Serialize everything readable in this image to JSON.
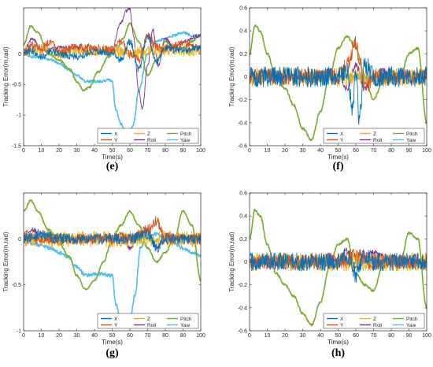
{
  "colors": {
    "X": "#0072BD",
    "Y": "#D95319",
    "Z": "#EDB120",
    "Roll": "#7E2F8E",
    "Pitch": "#77AC30",
    "Yaw": "#4DBEEE",
    "axis": "#262626",
    "background": "#ffffff"
  },
  "chart_data": [
    {
      "type": "line",
      "panel_label": "(e)",
      "xlabel": "Time(s)",
      "ylabel": "Tracking Error(m,rad)",
      "xlim": [
        0,
        100
      ],
      "ylim": [
        -1.5,
        0.75
      ],
      "xticks": [
        "0",
        "10",
        "20",
        "30",
        "40",
        "50",
        "60",
        "70",
        "80",
        "90",
        "100"
      ],
      "yticks": [
        "0",
        "-0.5",
        "-1",
        "-1.5"
      ],
      "ytick_values": [
        0,
        -0.5,
        -1,
        -1.5
      ],
      "grid": false,
      "legend": {
        "placement": "bottom-right",
        "columns": 3,
        "entries": [
          "X",
          "Z",
          "Pitch",
          "Y",
          "Roll",
          "Yaw"
        ]
      },
      "series": [
        {
          "name": "X",
          "x": [
            0,
            5,
            10,
            15,
            20,
            30,
            40,
            50,
            55,
            60,
            65,
            70,
            75,
            80,
            90,
            100
          ],
          "values": [
            0.0,
            0.05,
            -0.05,
            0.05,
            0.0,
            -0.05,
            0.05,
            0.0,
            -0.1,
            0.2,
            -0.25,
            0.3,
            -0.15,
            0.1,
            0.05,
            0.1
          ],
          "noise": 0.06
        },
        {
          "name": "Y",
          "x": [
            0,
            5,
            10,
            15,
            20,
            30,
            40,
            50,
            55,
            60,
            65,
            70,
            75,
            80,
            90,
            100
          ],
          "values": [
            0.0,
            0.15,
            0.1,
            0.2,
            0.05,
            0.1,
            0.1,
            0.05,
            0.2,
            0.0,
            -0.1,
            0.3,
            0.1,
            0.1,
            0.15,
            0.1
          ],
          "noise": 0.07
        },
        {
          "name": "Z",
          "x": [
            0,
            10,
            20,
            30,
            40,
            50,
            60,
            70,
            80,
            90,
            100
          ],
          "values": [
            0.05,
            0.05,
            0.0,
            0.05,
            0.05,
            0.05,
            0.0,
            0.05,
            0.05,
            0.05,
            0.05
          ],
          "noise": 0.09
        },
        {
          "name": "Roll",
          "x": [
            0,
            5,
            10,
            20,
            30,
            40,
            50,
            55,
            58,
            60,
            62,
            65,
            67,
            70,
            73,
            76,
            80,
            85,
            90,
            100
          ],
          "values": [
            0.05,
            0.25,
            0.05,
            0.1,
            0.1,
            0.0,
            0.1,
            0.5,
            0.7,
            0.75,
            0.3,
            -0.6,
            -0.9,
            -0.2,
            0.4,
            -0.2,
            0.25,
            0.1,
            0.2,
            0.3
          ],
          "noise": 0.03
        },
        {
          "name": "Pitch",
          "x": [
            0,
            4,
            8,
            14,
            20,
            26,
            30,
            34,
            37,
            42,
            48,
            52,
            56,
            60,
            65,
            70,
            75,
            80,
            85,
            90,
            95,
            100
          ],
          "values": [
            0.15,
            0.45,
            0.35,
            0.0,
            -0.1,
            -0.25,
            -0.45,
            -0.6,
            -0.55,
            -0.3,
            -0.05,
            0.05,
            0.25,
            0.5,
            0.2,
            -0.35,
            -0.1,
            0.2,
            0.1,
            0.1,
            0.2,
            0.3
          ],
          "noise": 0.015
        },
        {
          "name": "Yaw",
          "x": [
            0,
            5,
            10,
            15,
            20,
            25,
            30,
            35,
            40,
            45,
            48,
            50,
            52,
            55,
            57,
            60,
            62,
            65,
            70,
            75,
            80,
            85,
            90,
            95,
            100
          ],
          "values": [
            0.0,
            -0.05,
            -0.05,
            -0.1,
            -0.15,
            -0.25,
            -0.35,
            -0.45,
            -0.45,
            -0.45,
            -0.42,
            -0.45,
            -0.9,
            -1.15,
            -1.25,
            -1.3,
            -1.15,
            -0.6,
            0.0,
            0.2,
            0.25,
            0.3,
            0.35,
            0.3,
            0.3
          ],
          "noise": 0.02
        }
      ]
    },
    {
      "type": "line",
      "panel_label": "(f)",
      "xlabel": "Time(s)",
      "ylabel": "Tracking Error(m,rad)",
      "xlim": [
        0,
        100
      ],
      "ylim": [
        -0.6,
        0.6
      ],
      "xticks": [
        "0",
        "10",
        "20",
        "30",
        "40",
        "50",
        "60",
        "70",
        "80",
        "90",
        "100"
      ],
      "yticks": [
        "0.6",
        "0.4",
        "0.2",
        "0",
        "-0.2",
        "-0.4",
        "-0.6"
      ],
      "ytick_values": [
        0.6,
        0.4,
        0.2,
        0,
        -0.2,
        -0.4,
        -0.6
      ],
      "grid": false,
      "legend": {
        "placement": "bottom-right",
        "columns": 3,
        "entries": [
          "X",
          "Z",
          "Pitch",
          "Y",
          "Roll",
          "Yaw"
        ]
      },
      "series": [
        {
          "name": "X",
          "x": [
            0,
            10,
            20,
            30,
            40,
            50,
            55,
            58,
            60,
            62,
            65,
            70,
            80,
            90,
            100
          ],
          "values": [
            0.0,
            0.0,
            0.0,
            0.0,
            0.0,
            0.0,
            0.05,
            -0.3,
            0.0,
            -0.35,
            0.1,
            0.0,
            0.0,
            0.0,
            0.0
          ],
          "noise": 0.09
        },
        {
          "name": "Y",
          "x": [
            0,
            10,
            20,
            30,
            40,
            50,
            55,
            60,
            62,
            65,
            70,
            80,
            90,
            100
          ],
          "values": [
            0.0,
            0.0,
            0.0,
            0.0,
            0.0,
            0.0,
            0.1,
            0.3,
            0.15,
            -0.1,
            0.0,
            0.0,
            0.0,
            0.0
          ],
          "noise": 0.07
        },
        {
          "name": "Z",
          "x": [
            0,
            10,
            20,
            30,
            40,
            50,
            60,
            70,
            80,
            90,
            100
          ],
          "values": [
            0.0,
            0.0,
            0.0,
            0.0,
            0.0,
            0.0,
            0.0,
            0.0,
            0.0,
            0.0,
            0.0
          ],
          "noise": 0.08
        },
        {
          "name": "Roll",
          "x": [
            0,
            10,
            20,
            30,
            40,
            45,
            50,
            55,
            60,
            65,
            70,
            75,
            80,
            90,
            100
          ],
          "values": [
            0.0,
            0.02,
            0.0,
            -0.02,
            0.0,
            0.05,
            0.0,
            -0.1,
            0.1,
            -0.1,
            0.0,
            0.05,
            0.0,
            0.0,
            0.0
          ],
          "noise": 0.03
        },
        {
          "name": "Pitch",
          "x": [
            0,
            3,
            6,
            10,
            15,
            20,
            25,
            30,
            35,
            40,
            45,
            50,
            55,
            60,
            65,
            70,
            75,
            80,
            85,
            90,
            95,
            100
          ],
          "values": [
            0.2,
            0.45,
            0.4,
            0.2,
            0.0,
            -0.1,
            -0.25,
            -0.45,
            -0.55,
            -0.3,
            0.0,
            0.25,
            0.35,
            0.25,
            0.0,
            -0.2,
            -0.05,
            0.05,
            0.0,
            0.2,
            0.25,
            -0.4
          ],
          "noise": 0.01
        },
        {
          "name": "Yaw",
          "x": [
            0,
            10,
            20,
            30,
            40,
            50,
            60,
            70,
            80,
            90,
            100
          ],
          "values": [
            0.0,
            0.0,
            0.0,
            0.0,
            0.0,
            0.0,
            0.0,
            0.0,
            0.0,
            -0.02,
            0.0
          ],
          "noise": 0.02
        }
      ]
    },
    {
      "type": "line",
      "panel_label": "(g)",
      "xlabel": "Time(s)",
      "ylabel": "Tracking Error(m,rad)",
      "xlim": [
        0,
        100
      ],
      "ylim": [
        -1,
        0.5
      ],
      "xticks": [
        "0",
        "10",
        "20",
        "30",
        "40",
        "50",
        "60",
        "70",
        "80",
        "90",
        "100"
      ],
      "yticks": [
        "0",
        "-0.5",
        "-1"
      ],
      "ytick_values": [
        0,
        -0.5,
        -1
      ],
      "grid": false,
      "legend": {
        "placement": "bottom-right",
        "columns": 3,
        "entries": [
          "X",
          "Z",
          "Pitch",
          "Y",
          "Roll",
          "Yaw"
        ]
      },
      "series": [
        {
          "name": "X",
          "x": [
            0,
            10,
            20,
            30,
            40,
            50,
            60,
            70,
            75,
            80,
            90,
            100
          ],
          "values": [
            0.0,
            0.05,
            0.0,
            0.0,
            0.0,
            0.0,
            0.0,
            0.05,
            -0.1,
            0.0,
            0.0,
            0.0
          ],
          "noise": 0.06
        },
        {
          "name": "Y",
          "x": [
            0,
            10,
            20,
            30,
            40,
            50,
            60,
            70,
            75,
            80,
            90,
            100
          ],
          "values": [
            0.0,
            0.0,
            0.0,
            0.0,
            0.0,
            0.0,
            0.0,
            0.1,
            0.2,
            0.0,
            0.0,
            0.0
          ],
          "noise": 0.06
        },
        {
          "name": "Z",
          "x": [
            0,
            10,
            20,
            30,
            40,
            50,
            60,
            70,
            80,
            90,
            100
          ],
          "values": [
            0.0,
            0.0,
            0.0,
            0.0,
            0.0,
            0.0,
            0.0,
            0.0,
            0.0,
            0.0,
            0.0
          ],
          "noise": 0.09
        },
        {
          "name": "Roll",
          "x": [
            0,
            5,
            10,
            20,
            30,
            40,
            50,
            55,
            60,
            65,
            70,
            75,
            80,
            90,
            100
          ],
          "values": [
            0.05,
            0.1,
            0.05,
            0.0,
            0.0,
            0.0,
            0.0,
            0.05,
            -0.1,
            0.05,
            0.1,
            -0.1,
            0.05,
            0.0,
            0.0
          ],
          "noise": 0.03
        },
        {
          "name": "Pitch",
          "x": [
            0,
            4,
            8,
            14,
            20,
            26,
            30,
            35,
            40,
            45,
            50,
            55,
            60,
            65,
            70,
            75,
            80,
            85,
            90,
            95,
            100
          ],
          "values": [
            0.3,
            0.42,
            0.3,
            0.1,
            -0.05,
            -0.2,
            -0.4,
            -0.55,
            -0.45,
            -0.25,
            0.0,
            0.15,
            0.3,
            0.15,
            -0.1,
            -0.25,
            -0.15,
            0.0,
            0.3,
            0.15,
            -0.45
          ],
          "noise": 0.01
        },
        {
          "name": "Yaw",
          "x": [
            0,
            5,
            10,
            15,
            20,
            25,
            30,
            35,
            40,
            45,
            48,
            50,
            52,
            55,
            57,
            60,
            63,
            66,
            70,
            75,
            80,
            85,
            90,
            95,
            100
          ],
          "values": [
            0.0,
            -0.05,
            -0.07,
            -0.1,
            -0.15,
            -0.2,
            -0.3,
            -0.4,
            -0.38,
            -0.38,
            -0.4,
            -0.4,
            -0.7,
            -0.9,
            -0.95,
            -0.9,
            -0.6,
            -0.1,
            0.05,
            0.05,
            0.0,
            -0.05,
            -0.1,
            -0.15,
            -0.18
          ],
          "noise": 0.02
        }
      ]
    },
    {
      "type": "line",
      "panel_label": "(h)",
      "xlabel": "Time(s)",
      "ylabel": "Tracking Error(m,rad)",
      "xlim": [
        0,
        100
      ],
      "ylim": [
        -0.6,
        0.6
      ],
      "xticks": [
        "0",
        "10",
        "20",
        "30",
        "40",
        "50",
        "60",
        "70",
        "80",
        "90",
        "100"
      ],
      "yticks": [
        "0.6",
        "0.4",
        "0.2",
        "0",
        "-0.2",
        "-0.4",
        "-0.6"
      ],
      "ytick_values": [
        0.6,
        0.4,
        0.2,
        0,
        -0.2,
        -0.4,
        -0.6
      ],
      "grid": false,
      "legend": {
        "placement": "bottom-right",
        "columns": 3,
        "entries": [
          "X",
          "Z",
          "Pitch",
          "Y",
          "Roll",
          "Yaw"
        ]
      },
      "series": [
        {
          "name": "X",
          "x": [
            0,
            10,
            20,
            30,
            40,
            50,
            55,
            60,
            65,
            70,
            80,
            90,
            100
          ],
          "values": [
            0.0,
            0.0,
            0.0,
            0.0,
            0.0,
            0.0,
            0.05,
            -0.1,
            0.05,
            0.0,
            0.0,
            0.0,
            0.0
          ],
          "noise": 0.08
        },
        {
          "name": "Y",
          "x": [
            0,
            10,
            20,
            30,
            40,
            50,
            60,
            70,
            80,
            90,
            100
          ],
          "values": [
            0.0,
            0.0,
            0.0,
            0.0,
            0.0,
            0.0,
            0.05,
            0.0,
            0.0,
            0.0,
            0.0
          ],
          "noise": 0.07
        },
        {
          "name": "Z",
          "x": [
            0,
            10,
            20,
            30,
            40,
            50,
            60,
            70,
            80,
            90,
            100
          ],
          "values": [
            0.0,
            0.0,
            0.0,
            0.0,
            0.0,
            0.0,
            0.0,
            0.0,
            0.0,
            0.0,
            0.0
          ],
          "noise": 0.08
        },
        {
          "name": "Roll",
          "x": [
            0,
            10,
            20,
            30,
            40,
            45,
            50,
            55,
            60,
            65,
            70,
            80,
            90,
            100
          ],
          "values": [
            0.0,
            0.0,
            0.0,
            -0.02,
            0.0,
            0.05,
            0.0,
            0.1,
            -0.05,
            0.05,
            0.08,
            0.0,
            0.0,
            0.0
          ],
          "noise": 0.03
        },
        {
          "name": "Pitch",
          "x": [
            0,
            3,
            6,
            10,
            15,
            20,
            25,
            30,
            35,
            40,
            45,
            50,
            55,
            60,
            65,
            70,
            75,
            80,
            85,
            90,
            95,
            100
          ],
          "values": [
            0.2,
            0.45,
            0.4,
            0.15,
            -0.1,
            -0.2,
            -0.3,
            -0.45,
            -0.55,
            -0.35,
            -0.05,
            0.15,
            0.2,
            -0.1,
            -0.2,
            -0.25,
            -0.05,
            0.05,
            0.0,
            0.25,
            0.2,
            -0.4
          ],
          "noise": 0.01
        },
        {
          "name": "Yaw",
          "x": [
            0,
            10,
            20,
            30,
            40,
            50,
            60,
            70,
            80,
            90,
            100
          ],
          "values": [
            0.0,
            0.0,
            0.0,
            0.0,
            0.0,
            0.0,
            0.0,
            0.0,
            0.0,
            0.0,
            0.0
          ],
          "noise": 0.02
        }
      ]
    }
  ]
}
